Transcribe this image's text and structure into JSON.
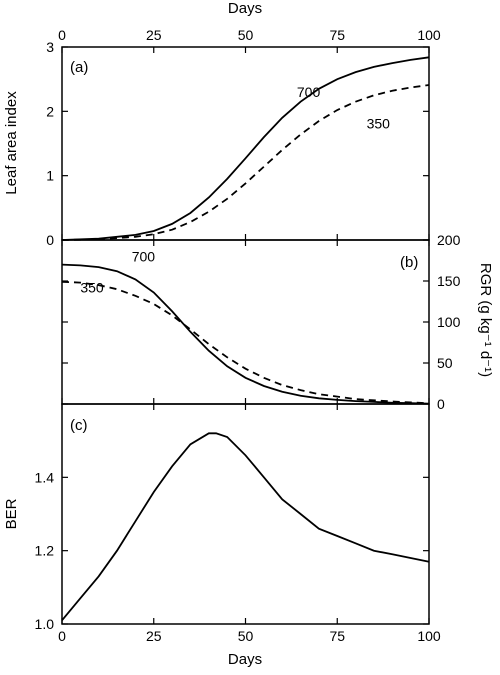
{
  "chart_data": [
    {
      "panel": "a",
      "type": "line",
      "panel_tag": "(a)",
      "xlabel": "Days",
      "ylabel": "Leaf area index",
      "xlim": [
        0,
        100
      ],
      "ylim": [
        0,
        3
      ],
      "x_ticks": [
        "0",
        "25",
        "50",
        "75",
        "100"
      ],
      "y_ticks": [
        "0",
        "1",
        "2",
        "3"
      ],
      "y_axis_side": "left",
      "series": [
        {
          "name": "700",
          "style": "solid",
          "x": [
            0,
            10,
            20,
            25,
            30,
            35,
            40,
            45,
            50,
            55,
            60,
            65,
            70,
            75,
            80,
            85,
            90,
            95,
            100
          ],
          "y": [
            0,
            0.02,
            0.08,
            0.14,
            0.25,
            0.42,
            0.66,
            0.95,
            1.27,
            1.6,
            1.9,
            2.15,
            2.35,
            2.5,
            2.61,
            2.69,
            2.75,
            2.8,
            2.84
          ]
        },
        {
          "name": "350",
          "style": "dashed",
          "x": [
            0,
            10,
            20,
            25,
            30,
            35,
            40,
            45,
            50,
            55,
            60,
            65,
            70,
            75,
            80,
            85,
            90,
            95,
            100
          ],
          "y": [
            0,
            0.01,
            0.05,
            0.09,
            0.16,
            0.28,
            0.44,
            0.64,
            0.88,
            1.14,
            1.4,
            1.64,
            1.85,
            2.02,
            2.15,
            2.25,
            2.32,
            2.37,
            2.41
          ]
        }
      ]
    },
    {
      "panel": "b",
      "type": "line",
      "panel_tag": "(b)",
      "ylabel": "RGR (g kg⁻¹ d⁻¹)",
      "xlim": [
        0,
        100
      ],
      "ylim": [
        0,
        200
      ],
      "y_ticks": [
        "0",
        "50",
        "100",
        "150",
        "200"
      ],
      "y_axis_side": "right",
      "series": [
        {
          "name": "700",
          "style": "solid",
          "x": [
            0,
            5,
            10,
            15,
            20,
            25,
            30,
            35,
            40,
            45,
            50,
            55,
            60,
            65,
            70,
            75,
            80,
            85,
            90,
            95,
            100
          ],
          "y": [
            170,
            169,
            167,
            162,
            152,
            136,
            113,
            88,
            65,
            46,
            32,
            22,
            15,
            10,
            7,
            5,
            3.5,
            2.5,
            1.5,
            1,
            0.5
          ]
        },
        {
          "name": "350",
          "style": "dashed",
          "x": [
            0,
            5,
            10,
            15,
            20,
            25,
            30,
            35,
            40,
            45,
            50,
            55,
            60,
            65,
            70,
            75,
            80,
            85,
            90,
            95,
            100
          ],
          "y": [
            149,
            148,
            145,
            140,
            132,
            122,
            108,
            91,
            73,
            57,
            43,
            32,
            23,
            17,
            12,
            9,
            6,
            4.5,
            3,
            2,
            1
          ]
        }
      ]
    },
    {
      "panel": "c",
      "type": "line",
      "panel_tag": "(c)",
      "xlabel": "Days",
      "ylabel": "BER",
      "xlim": [
        0,
        100
      ],
      "ylim": [
        1.0,
        1.6
      ],
      "x_ticks": [
        "0",
        "25",
        "50",
        "75",
        "100"
      ],
      "y_ticks": [
        "1.0",
        "1.2",
        "1.4"
      ],
      "y_axis_side": "left",
      "series": [
        {
          "style": "solid",
          "x": [
            0,
            5,
            10,
            15,
            20,
            25,
            30,
            35,
            40,
            42,
            45,
            50,
            55,
            60,
            65,
            70,
            75,
            80,
            85,
            90,
            95,
            100
          ],
          "y": [
            1.01,
            1.07,
            1.13,
            1.2,
            1.28,
            1.36,
            1.43,
            1.49,
            1.52,
            1.52,
            1.51,
            1.46,
            1.4,
            1.34,
            1.3,
            1.26,
            1.24,
            1.22,
            1.2,
            1.19,
            1.18,
            1.17
          ]
        }
      ]
    }
  ],
  "annotations": {
    "a": [
      {
        "text": "700",
        "x": 64,
        "y": 2.22
      },
      {
        "text": "350",
        "x": 83,
        "y": 1.73
      }
    ],
    "b": [
      {
        "text": "700",
        "x": 19,
        "y": 174
      },
      {
        "text": "350",
        "x": 5,
        "y": 136
      }
    ]
  }
}
